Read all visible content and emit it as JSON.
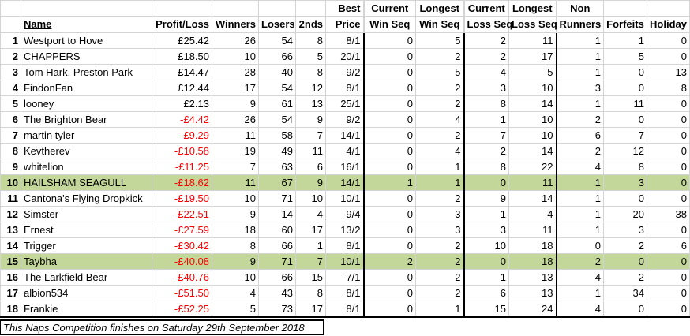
{
  "headers": {
    "name": "Name",
    "profit_loss": "Profit/Loss",
    "winners": "Winners",
    "losers": "Losers",
    "seconds": "2nds",
    "best_price_1": "Best",
    "best_price_2": "Price",
    "current_win_1": "Current",
    "current_win_2": "Win Seq",
    "longest_win_1": "Longest",
    "longest_win_2": "Win Seq",
    "current_loss_1": "Current",
    "current_loss_2": "Loss Seq",
    "longest_loss_1": "Longest",
    "longest_loss_2": "Loss Seq",
    "non_runners_1": "Non",
    "non_runners_2": "Runners",
    "forfeits": "Forfeits",
    "holiday": "Holiday"
  },
  "rows": [
    {
      "rank": "1",
      "name": "Westport to Hove",
      "pl": "£25.42",
      "neg": false,
      "winners": "26",
      "losers": "54",
      "seconds": "8",
      "best": "8/1",
      "cws": "0",
      "lws": "5",
      "cls": "2",
      "lls": "11",
      "nr": "1",
      "forfeits": "1",
      "holiday": "0",
      "highlight": false
    },
    {
      "rank": "2",
      "name": "CHAPPERS",
      "pl": "£18.50",
      "neg": false,
      "winners": "10",
      "losers": "66",
      "seconds": "5",
      "best": "20/1",
      "cws": "0",
      "lws": "2",
      "cls": "2",
      "lls": "17",
      "nr": "1",
      "forfeits": "5",
      "holiday": "0",
      "highlight": false
    },
    {
      "rank": "3",
      "name": "Tom Hark, Preston Park",
      "pl": "£14.47",
      "neg": false,
      "winners": "28",
      "losers": "40",
      "seconds": "8",
      "best": "9/2",
      "cws": "0",
      "lws": "5",
      "cls": "4",
      "lls": "5",
      "nr": "1",
      "forfeits": "0",
      "holiday": "13",
      "highlight": false
    },
    {
      "rank": "4",
      "name": "FindonFan",
      "pl": "£12.44",
      "neg": false,
      "winners": "17",
      "losers": "54",
      "seconds": "12",
      "best": "8/1",
      "cws": "0",
      "lws": "2",
      "cls": "3",
      "lls": "10",
      "nr": "3",
      "forfeits": "0",
      "holiday": "8",
      "highlight": false
    },
    {
      "rank": "5",
      "name": "looney",
      "pl": "£2.13",
      "neg": false,
      "winners": "9",
      "losers": "61",
      "seconds": "13",
      "best": "25/1",
      "cws": "0",
      "lws": "2",
      "cls": "8",
      "lls": "14",
      "nr": "1",
      "forfeits": "11",
      "holiday": "0",
      "highlight": false
    },
    {
      "rank": "6",
      "name": "The Brighton Bear",
      "pl": "-£4.42",
      "neg": true,
      "winners": "26",
      "losers": "54",
      "seconds": "9",
      "best": "9/2",
      "cws": "0",
      "lws": "4",
      "cls": "1",
      "lls": "10",
      "nr": "2",
      "forfeits": "0",
      "holiday": "0",
      "highlight": false
    },
    {
      "rank": "7",
      "name": "martin tyler",
      "pl": "-£9.29",
      "neg": true,
      "winners": "11",
      "losers": "58",
      "seconds": "7",
      "best": "14/1",
      "cws": "0",
      "lws": "2",
      "cls": "7",
      "lls": "10",
      "nr": "6",
      "forfeits": "7",
      "holiday": "0",
      "highlight": false
    },
    {
      "rank": "8",
      "name": "Kevtherev",
      "pl": "-£10.58",
      "neg": true,
      "winners": "19",
      "losers": "49",
      "seconds": "11",
      "best": "4/1",
      "cws": "0",
      "lws": "4",
      "cls": "2",
      "lls": "14",
      "nr": "2",
      "forfeits": "12",
      "holiday": "0",
      "highlight": false
    },
    {
      "rank": "9",
      "name": "whitelion",
      "pl": "-£11.25",
      "neg": true,
      "winners": "7",
      "losers": "63",
      "seconds": "6",
      "best": "16/1",
      "cws": "0",
      "lws": "1",
      "cls": "8",
      "lls": "22",
      "nr": "4",
      "forfeits": "8",
      "holiday": "0",
      "highlight": false
    },
    {
      "rank": "10",
      "name": "HAILSHAM SEAGULL",
      "pl": "-£18.62",
      "neg": true,
      "winners": "11",
      "losers": "67",
      "seconds": "9",
      "best": "14/1",
      "cws": "1",
      "lws": "1",
      "cls": "0",
      "lls": "11",
      "nr": "1",
      "forfeits": "3",
      "holiday": "0",
      "highlight": true
    },
    {
      "rank": "11",
      "name": "Cantona's Flying Dropkick",
      "pl": "-£19.50",
      "neg": true,
      "winners": "10",
      "losers": "71",
      "seconds": "10",
      "best": "10/1",
      "cws": "0",
      "lws": "2",
      "cls": "9",
      "lls": "14",
      "nr": "1",
      "forfeits": "0",
      "holiday": "0",
      "highlight": false
    },
    {
      "rank": "12",
      "name": "Simster",
      "pl": "-£22.51",
      "neg": true,
      "winners": "9",
      "losers": "14",
      "seconds": "4",
      "best": "9/4",
      "cws": "0",
      "lws": "3",
      "cls": "1",
      "lls": "4",
      "nr": "1",
      "forfeits": "20",
      "holiday": "38",
      "highlight": false
    },
    {
      "rank": "13",
      "name": "Ernest",
      "pl": "-£27.59",
      "neg": true,
      "winners": "18",
      "losers": "60",
      "seconds": "17",
      "best": "13/2",
      "cws": "0",
      "lws": "3",
      "cls": "3",
      "lls": "11",
      "nr": "1",
      "forfeits": "3",
      "holiday": "0",
      "highlight": false
    },
    {
      "rank": "14",
      "name": "Trigger",
      "pl": "-£30.42",
      "neg": true,
      "winners": "8",
      "losers": "66",
      "seconds": "1",
      "best": "8/1",
      "cws": "0",
      "lws": "2",
      "cls": "10",
      "lls": "18",
      "nr": "0",
      "forfeits": "2",
      "holiday": "6",
      "highlight": false
    },
    {
      "rank": "15",
      "name": "Taybha",
      "pl": "-£40.08",
      "neg": true,
      "winners": "9",
      "losers": "71",
      "seconds": "7",
      "best": "10/1",
      "cws": "2",
      "lws": "2",
      "cls": "0",
      "lls": "18",
      "nr": "2",
      "forfeits": "0",
      "holiday": "0",
      "highlight": true
    },
    {
      "rank": "16",
      "name": "The Larkfield Bear",
      "pl": "-£40.76",
      "neg": true,
      "winners": "10",
      "losers": "66",
      "seconds": "15",
      "best": "7/1",
      "cws": "0",
      "lws": "2",
      "cls": "1",
      "lls": "13",
      "nr": "4",
      "forfeits": "2",
      "holiday": "0",
      "highlight": false
    },
    {
      "rank": "17",
      "name": "albion534",
      "pl": "-£51.50",
      "neg": true,
      "winners": "4",
      "losers": "43",
      "seconds": "8",
      "best": "8/1",
      "cws": "0",
      "lws": "2",
      "cls": "6",
      "lls": "13",
      "nr": "1",
      "forfeits": "34",
      "holiday": "0",
      "highlight": false
    },
    {
      "rank": "18",
      "name": "Frankie",
      "pl": "-£52.25",
      "neg": true,
      "winners": "5",
      "losers": "73",
      "seconds": "17",
      "best": "8/1",
      "cws": "0",
      "lws": "1",
      "cls": "15",
      "lls": "24",
      "nr": "4",
      "forfeits": "0",
      "holiday": "0",
      "highlight": false
    }
  ],
  "footer": "This Naps Competition finishes on Saturday 29th September 2018"
}
